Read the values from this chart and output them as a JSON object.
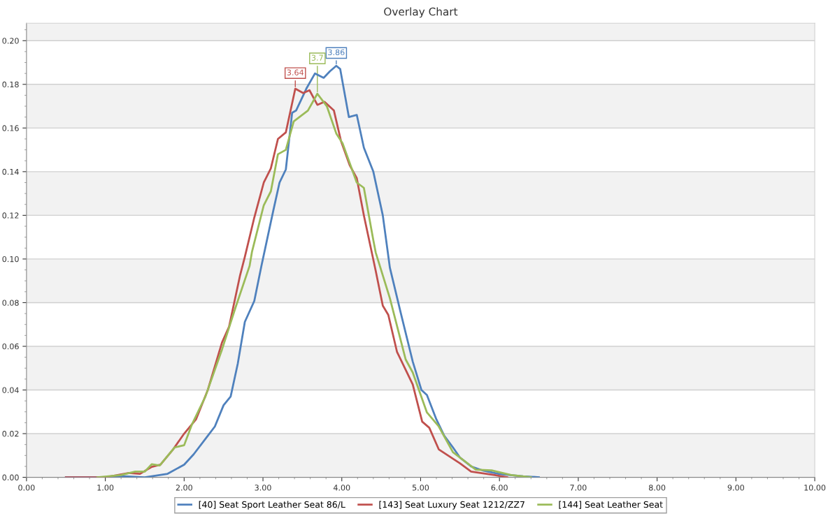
{
  "chart_data": {
    "type": "line",
    "title": "Overlay Chart",
    "xlim": [
      0,
      10
    ],
    "ylim": [
      0,
      0.208
    ],
    "xticks": [
      {
        "value": 0,
        "label": "0.00"
      },
      {
        "value": 1,
        "label": "1.00"
      },
      {
        "value": 2,
        "label": "2.00"
      },
      {
        "value": 3,
        "label": "3.00"
      },
      {
        "value": 4,
        "label": "4.00"
      },
      {
        "value": 5,
        "label": "5.00"
      },
      {
        "value": 6,
        "label": "6.00"
      },
      {
        "value": 7,
        "label": "7.00"
      },
      {
        "value": 8,
        "label": "8.00"
      },
      {
        "value": 9,
        "label": "9.00"
      },
      {
        "value": 10,
        "label": "10.00"
      }
    ],
    "yticks": [
      {
        "value": 0,
        "label": "0.00"
      },
      {
        "value": 0.02,
        "label": "0.02"
      },
      {
        "value": 0.04,
        "label": "0.04"
      },
      {
        "value": 0.06,
        "label": "0.06"
      },
      {
        "value": 0.08,
        "label": "0.08"
      },
      {
        "value": 0.1,
        "label": "0.10"
      },
      {
        "value": 0.12,
        "label": "0.12"
      },
      {
        "value": 0.14,
        "label": "0.14"
      },
      {
        "value": 0.16,
        "label": "0.16"
      },
      {
        "value": 0.18,
        "label": "0.18"
      },
      {
        "value": 0.2,
        "label": "0.20"
      }
    ],
    "grid": "y",
    "legend": "bottom",
    "marker": "none",
    "line_style": "solid",
    "bands": [
      {
        "axis": "y",
        "from": 0,
        "to": 0.02,
        "color": "#f2f2f2"
      },
      {
        "axis": "y",
        "from": 0.04,
        "to": 0.06,
        "color": "#f2f2f2"
      },
      {
        "axis": "y",
        "from": 0.08,
        "to": 0.1,
        "color": "#f2f2f2"
      },
      {
        "axis": "y",
        "from": 0.12,
        "to": 0.14,
        "color": "#f2f2f2"
      },
      {
        "axis": "y",
        "from": 0.16,
        "to": 0.18,
        "color": "#f2f2f2"
      },
      {
        "axis": "y",
        "from": 0.2,
        "to": 0.208,
        "color": "#f2f2f2"
      }
    ],
    "annotations": [
      {
        "text": "3.86",
        "x": 3.93,
        "y": 0.1885
      },
      {
        "text": "3.64",
        "x": 3.41,
        "y": 0.178
      },
      {
        "text": "3.7",
        "x": 3.69,
        "y": 0.1757
      }
    ],
    "series": [
      {
        "name": "[40] Seat Sport Leather Seat 86/L",
        "color": "#4f81bd",
        "x": [
          0.5,
          1.0,
          1.2,
          1.5,
          1.79,
          2.0,
          2.12,
          2.3,
          2.39,
          2.5,
          2.59,
          2.68,
          2.77,
          2.89,
          2.98,
          3.13,
          3.21,
          3.29,
          3.37,
          3.42,
          3.55,
          3.66,
          3.77,
          3.85,
          3.93,
          3.98,
          4.04,
          4.09,
          4.19,
          4.28,
          4.4,
          4.52,
          4.61,
          4.75,
          4.9,
          5.01,
          5.08,
          5.2,
          5.3,
          5.41,
          5.5,
          5.64,
          5.8,
          6.0,
          6.3,
          6.5
        ],
        "values": [
          0,
          0,
          0.0005,
          0,
          0.0016,
          0.0058,
          0.0105,
          0.019,
          0.0233,
          0.033,
          0.037,
          0.052,
          0.0712,
          0.0808,
          0.0968,
          0.122,
          0.135,
          0.141,
          0.167,
          0.168,
          0.178,
          0.185,
          0.183,
          0.186,
          0.1885,
          0.187,
          0.175,
          0.165,
          0.166,
          0.151,
          0.14,
          0.12,
          0.096,
          0.075,
          0.053,
          0.04,
          0.0377,
          0.0265,
          0.019,
          0.0137,
          0.009,
          0.005,
          0.003,
          0.0015,
          0.0005,
          0
        ]
      },
      {
        "name": "[143] Seat Luxury Seat 1212/ZZ7",
        "color": "#c0504d",
        "x": [
          0.5,
          1.0,
          1.3,
          1.44,
          1.59,
          1.7,
          1.86,
          2.0,
          2.15,
          2.3,
          2.48,
          2.57,
          2.71,
          2.77,
          2.89,
          3.01,
          3.1,
          3.19,
          3.29,
          3.35,
          3.41,
          3.51,
          3.59,
          3.69,
          3.78,
          3.9,
          3.99,
          4.1,
          4.19,
          4.28,
          4.43,
          4.52,
          4.59,
          4.7,
          4.9,
          5.02,
          5.11,
          5.23,
          5.5,
          5.64,
          5.94,
          6.1
        ],
        "values": [
          0,
          0,
          0.002,
          0.0016,
          0.0048,
          0.0058,
          0.0128,
          0.02,
          0.0265,
          0.04,
          0.0617,
          0.069,
          0.0926,
          0.101,
          0.119,
          0.135,
          0.1415,
          0.155,
          0.158,
          0.168,
          0.178,
          0.176,
          0.1773,
          0.1706,
          0.172,
          0.168,
          0.154,
          0.143,
          0.137,
          0.12,
          0.0946,
          0.0786,
          0.0744,
          0.0575,
          0.0425,
          0.0255,
          0.0227,
          0.0128,
          0.0064,
          0.0026,
          0.001,
          0
        ]
      },
      {
        "name": "[144] Seat Leather Seat",
        "color": "#9bbb59",
        "x": [
          0.9,
          1.2,
          1.38,
          1.5,
          1.59,
          1.69,
          1.88,
          2.0,
          2.1,
          2.27,
          2.48,
          2.65,
          2.83,
          2.86,
          3.01,
          3.1,
          3.19,
          3.29,
          3.39,
          3.57,
          3.69,
          3.81,
          3.93,
          4.01,
          4.19,
          4.28,
          4.4,
          4.43,
          4.61,
          4.81,
          4.9,
          5.08,
          5.23,
          5.41,
          5.7,
          5.9,
          6.15,
          6.4
        ],
        "values": [
          0,
          0.001,
          0.0026,
          0.0026,
          0.006,
          0.0054,
          0.0137,
          0.0147,
          0.0243,
          0.037,
          0.0585,
          0.0776,
          0.0968,
          0.1032,
          0.1246,
          0.131,
          0.148,
          0.15,
          0.163,
          0.168,
          0.1757,
          0.17,
          0.1575,
          0.153,
          0.135,
          0.1326,
          0.1086,
          0.103,
          0.082,
          0.054,
          0.048,
          0.0297,
          0.0233,
          0.0115,
          0.0035,
          0.0032,
          0.001,
          0
        ]
      }
    ]
  }
}
